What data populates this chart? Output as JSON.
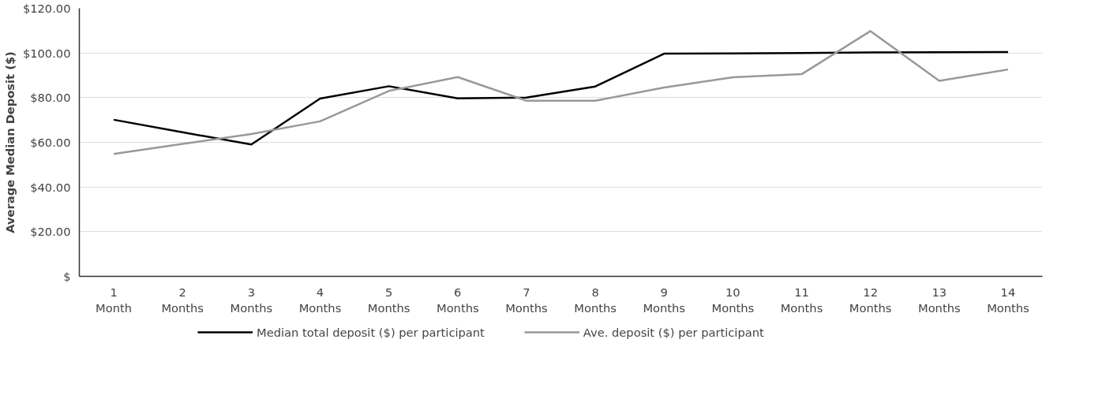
{
  "chart_data": {
    "type": "line",
    "ylabel": "Average Median Deposit ($)",
    "categories": [
      "1\nMonth",
      "2\nMonths",
      "3\nMonths",
      "4\nMonths",
      "5\nMonths",
      "6\nMonths",
      "7\nMonths",
      "8\nMonths",
      "9\nMonths",
      "10\nMonths",
      "11\nMonths",
      "12\nMonths",
      "13\nMonths",
      "14\nMonths"
    ],
    "series": [
      {
        "name": "Median total deposit ($) per participant",
        "color": "#000000",
        "values": [
          70.1,
          64.5,
          59,
          79.6,
          85.1,
          79.7,
          80,
          85,
          99.7,
          99.8,
          100,
          100.2,
          100.3,
          100.4
        ]
      },
      {
        "name": "Ave. deposit ($) per participant",
        "color": "#999999",
        "values": [
          54.8,
          59.3,
          63.7,
          69.4,
          83,
          89.2,
          78.6,
          78.6,
          84.5,
          89.1,
          90.5,
          109.8,
          87.5,
          92.6
        ]
      }
    ],
    "ylim": [
      0,
      120
    ],
    "yticks": [
      {
        "value": 0,
        "label": "$"
      },
      {
        "value": 20,
        "label": "$20.00"
      },
      {
        "value": 40,
        "label": "$40.00"
      },
      {
        "value": 60,
        "label": "$60.00"
      },
      {
        "value": 80,
        "label": "$80.00"
      },
      {
        "value": 100,
        "label": "$100.00"
      },
      {
        "value": 120,
        "label": "$120.00"
      }
    ],
    "grid": "y",
    "legend": "bottom",
    "marker": "none",
    "line_style": "solid"
  }
}
